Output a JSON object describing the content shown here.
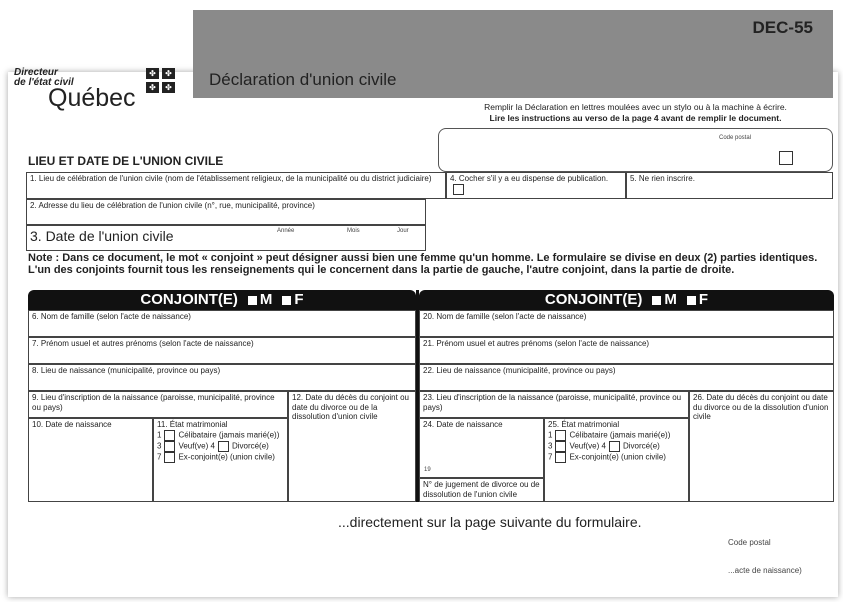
{
  "header": {
    "title": "Déclaration d'union civile",
    "form_code": "DEC-55"
  },
  "logo": {
    "line1": "Directeur",
    "line2": "de l'état civil",
    "name": "Québec"
  },
  "instructions": {
    "line1": "Remplir la Déclaration en lettres moulées avec un stylo ou à la machine à écrire.",
    "line2": "Lire les instructions au verso de la page 4 avant de remplir le document."
  },
  "section_title": "LIEU ET DATE DE L'UNION CIVILE",
  "fields": {
    "f1": "1. Lieu de célébration de l'union civile (nom de l'établissement religieux, de la municipalité ou du district judiciaire)",
    "f2": "2. Adresse du lieu de célébration de l'union civile (n°, rue, municipalité, province)",
    "f3": "3. Date de l'union civile",
    "code_postal": "Code postal",
    "f4": "4. Cocher s'il y a eu dispense de publication.",
    "f5": "5. Ne rien inscrire.",
    "annee": "Année",
    "mois": "Mois",
    "jour": "Jour"
  },
  "note": {
    "label": "Note :",
    "text": "Dans ce document, le mot « conjoint » peut désigner aussi bien une femme qu'un homme. Le formulaire se divise en deux (2) parties identiques. L'un des conjoints fournit tous les renseignements qui le concernent dans la partie de gauche, l'autre conjoint, dans la partie de droite."
  },
  "conjoint": {
    "label": "CONJOINT(E)",
    "m": "M",
    "f": "F"
  },
  "left": {
    "f6": "6. Nom de famille (selon l'acte de naissance)",
    "f7": "7. Prénom usuel et autres prénoms (selon l'acte de naissance)",
    "f8": "8. Lieu de naissance (municipalité, province ou pays)",
    "f9": "9. Lieu d'inscription de la naissance (paroisse, municipalité, province ou pays)",
    "f10": "10. Date de naissance",
    "f11": "11. État matrimonial",
    "f12": "12. Date du décès du conjoint ou date du divorce ou de la dissolution d'union civile"
  },
  "right": {
    "f20": "20. Nom de famille (selon l'acte de naissance)",
    "f21": "21. Prénom usuel et autres prénoms (selon l'acte de naissance)",
    "f22": "22. Lieu de naissance (municipalité, province ou pays)",
    "f23": "23. Lieu d'inscription de la naissance (paroisse, municipalité, province ou pays)",
    "f24": "24. Date de naissance",
    "f25": "25. État matrimonial",
    "f26": "26. Date du décès du conjoint ou date du divorce ou de la dissolution d'union civile",
    "judgment": "N° de jugement de divorce ou de dissolution de l'union civile",
    "year_prefix": "19"
  },
  "status_options": {
    "o1": "1",
    "o1l": "Célibataire (jamais marié(e))",
    "o4": "4",
    "o4l": "Divorcé(e)",
    "o3": "3",
    "o3l": "Veuf(ve)",
    "o7": "7",
    "o7l": "Ex-conjoint(e) (union civile)"
  },
  "bottom": {
    "text": "...directement sur la page suivante du formulaire.",
    "code_postal": "Code postal",
    "acte": "...acte de naissance)"
  }
}
